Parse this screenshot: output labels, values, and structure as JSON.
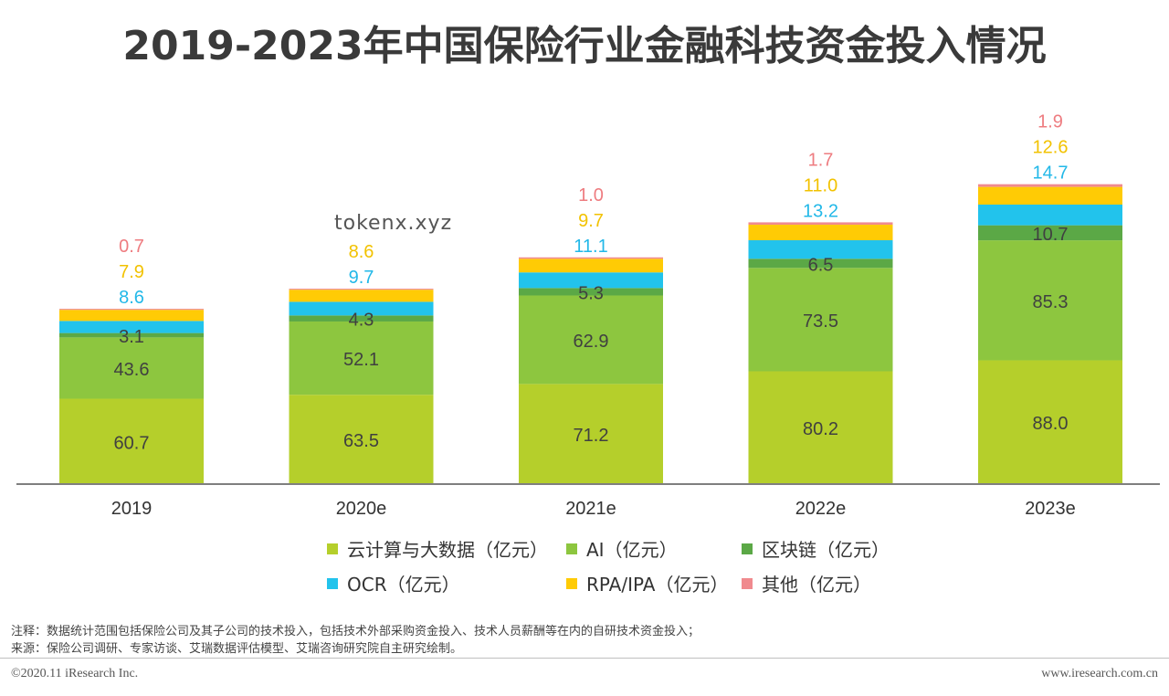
{
  "title": "2019-2023年中国保险行业金融科技资金投入情况",
  "watermark": "tokenx.xyz",
  "chart_data": {
    "type": "bar",
    "stacked": true,
    "categories": [
      "2019",
      "2020e",
      "2021e",
      "2022e",
      "2023e"
    ],
    "series": [
      {
        "name": "云计算与大数据（亿元）",
        "color": "#b5cf2b",
        "label_color": "#404040",
        "values": [
          60.7,
          63.5,
          71.2,
          80.2,
          88.0
        ]
      },
      {
        "name": "AI（亿元）",
        "color": "#8dc63f",
        "label_color": "#404040",
        "values": [
          43.6,
          52.1,
          62.9,
          73.5,
          85.3
        ]
      },
      {
        "name": "区块链（亿元）",
        "color": "#5ba846",
        "label_color": "#404040",
        "values": [
          3.1,
          4.3,
          5.3,
          6.5,
          10.7
        ]
      },
      {
        "name": "OCR（亿元）",
        "color": "#22c3ec",
        "label_color": "#22b8e8",
        "values": [
          8.6,
          9.7,
          11.1,
          13.2,
          14.7
        ]
      },
      {
        "name": "RPA/IPA（亿元）",
        "color": "#ffcb05",
        "label_color": "#f2c200",
        "values": [
          7.9,
          8.6,
          9.7,
          11.0,
          12.6
        ]
      },
      {
        "name": "其他（亿元）",
        "color": "#f08a8e",
        "label_color": "#ee7c80",
        "values": [
          0.7,
          0.7,
          1.0,
          1.7,
          1.9
        ]
      }
    ],
    "value_labels": [
      [
        "60.7",
        "63.5",
        "71.2",
        "80.2",
        "88.0"
      ],
      [
        "43.6",
        "52.1",
        "62.9",
        "73.5",
        "85.3"
      ],
      [
        "3.1",
        "4.3",
        "5.3",
        "6.5",
        "10.7"
      ],
      [
        "8.6",
        "9.7",
        "11.1",
        "13.2",
        "14.7"
      ],
      [
        "7.9",
        "8.6",
        "9.7",
        "11.0",
        "12.6"
      ],
      [
        "0.7",
        "",
        "1.0",
        "1.7",
        "1.9"
      ]
    ],
    "xlabel": "",
    "ylabel": "",
    "ylim": [
      0,
      260
    ],
    "grid": false,
    "legend_position": "bottom"
  },
  "notes": {
    "note_line": "注释：数据统计范围包括保险公司及其子公司的技术投入，包括技术外部采购资金投入、技术人员薪酬等在内的自研技术资金投入；",
    "source_line": "来源：保险公司调研、专家访谈、艾瑞数据评估模型、艾瑞咨询研究院自主研究绘制。"
  },
  "footer": {
    "copyright": "©2020.11 iResearch Inc.",
    "website": "www.iresearch.com.cn"
  }
}
